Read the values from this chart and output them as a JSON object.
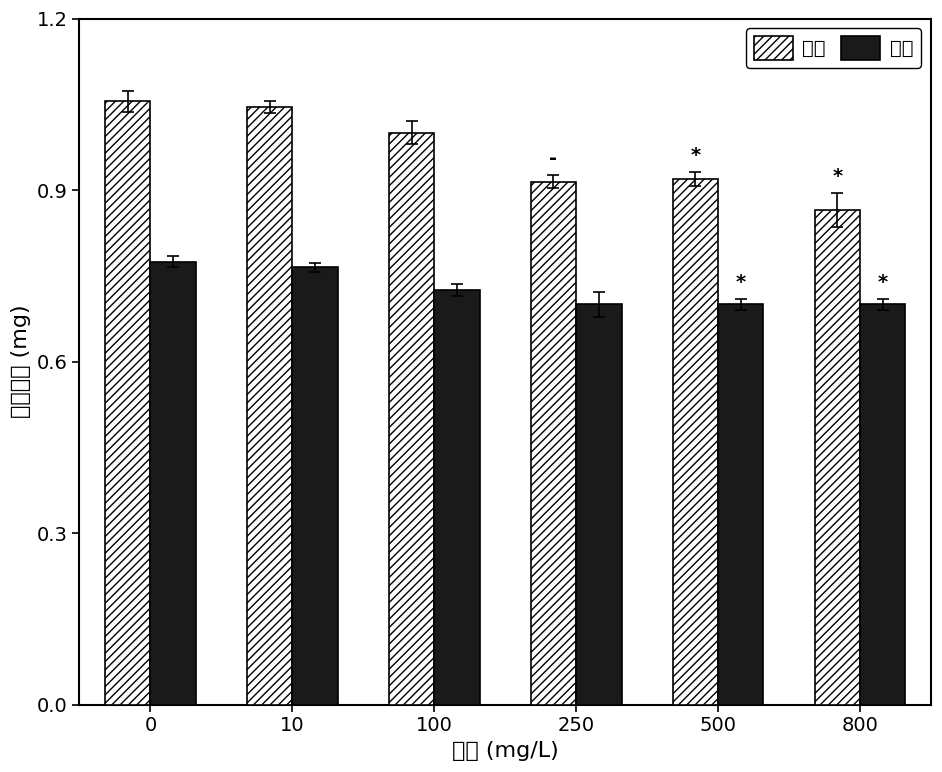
{
  "categories": [
    "0",
    "10",
    "100",
    "250",
    "500",
    "800"
  ],
  "male_values": [
    1.055,
    1.045,
    1.0,
    0.915,
    0.92,
    0.865
  ],
  "female_values": [
    0.775,
    0.765,
    0.725,
    0.7,
    0.7,
    0.7
  ],
  "male_errors": [
    0.018,
    0.01,
    0.02,
    0.012,
    0.012,
    0.03
  ],
  "female_errors": [
    0.01,
    0.008,
    0.01,
    0.022,
    0.01,
    0.01
  ],
  "male_sig": [
    "",
    "",
    "",
    "-",
    "*",
    "*"
  ],
  "female_sig": [
    "",
    "",
    "",
    "",
    "*",
    "*"
  ],
  "xlabel": "浓度 (mg/L)",
  "ylabel": "平均体重 (mg)",
  "ylim": [
    0.0,
    1.2
  ],
  "yticks": [
    0.0,
    0.3,
    0.6,
    0.9,
    1.2
  ],
  "bar_width": 0.32,
  "hatch_color": "#000000",
  "male_facecolor": "#ffffff",
  "female_facecolor": "#1a1a1a",
  "male_label": "雄蜕",
  "female_label": "雌蜕",
  "legend_fontsize": 14,
  "axis_fontsize": 16,
  "tick_fontsize": 14,
  "sig_fontsize": 14
}
